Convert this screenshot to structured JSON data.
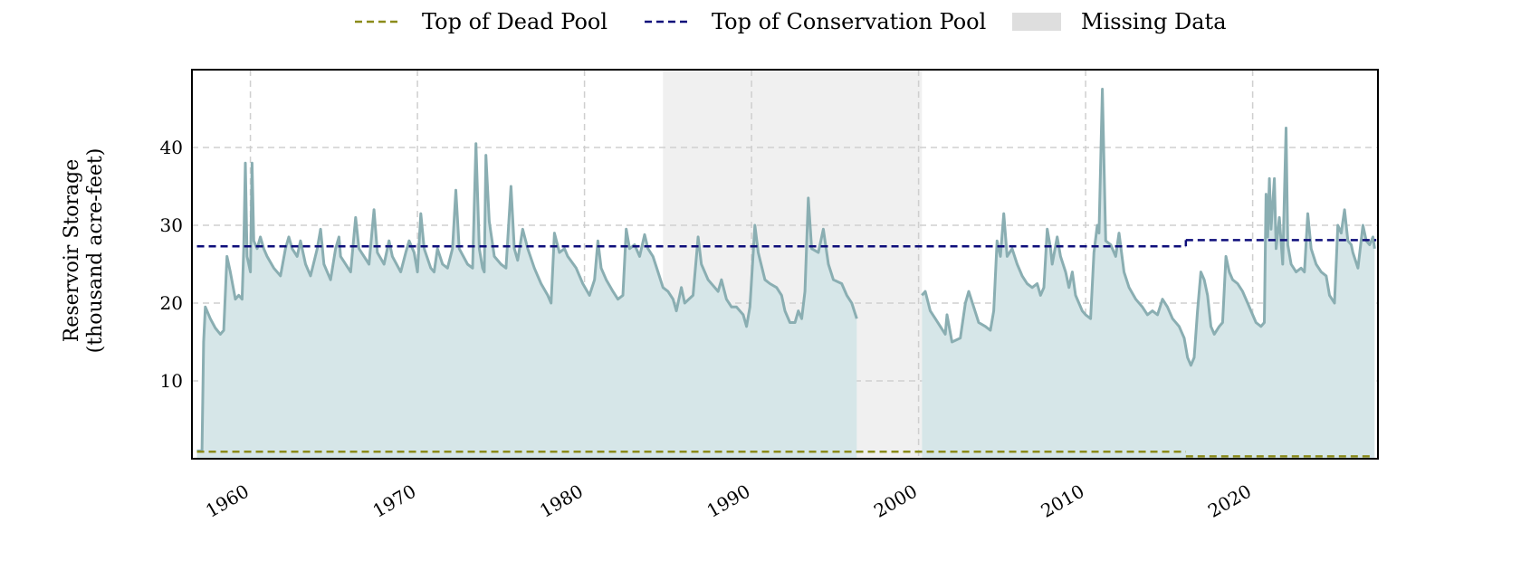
{
  "chart_data": {
    "type": "area",
    "title": "",
    "ylabel_line1": "Reservoir Storage",
    "ylabel_line2": "(thousand acre-feet)",
    "xlabel": "",
    "xlim": [
      1956.5,
      2027.5
    ],
    "ylim": [
      0,
      50
    ],
    "x_ticks": [
      1960,
      1970,
      1980,
      1990,
      2000,
      2010,
      2020
    ],
    "x_tick_labels": [
      "1960",
      "1970",
      "1980",
      "1990",
      "2000",
      "2010",
      "2020"
    ],
    "y_ticks": [
      10,
      20,
      30,
      40
    ],
    "y_tick_labels": [
      "10",
      "20",
      "30",
      "40"
    ],
    "grid": true,
    "legend_position": "top-center",
    "legend": {
      "dead_pool": "Top of Dead Pool",
      "conservation_pool": "Top of Conservation Pool",
      "missing": "Missing Data"
    },
    "colors": {
      "storage_line": "#8aaeb2",
      "storage_fill": "#d6e6e8",
      "dead_pool": "#8b8b1a",
      "conservation_pool": "#0d0d7a",
      "missing": "#f0f0f0",
      "missing_legend": "#dedede",
      "grid": "#cfcfcf"
    },
    "missing_ranges": [
      [
        1984.7,
        2000.2
      ]
    ],
    "dead_pool": [
      {
        "x": [
          1956.8,
          2016.0
        ],
        "y": 0.9
      },
      {
        "x": [
          2016.0,
          2027.1
        ],
        "y": 0.3
      }
    ],
    "conservation_pool": [
      {
        "x": [
          1956.8,
          2016.0
        ],
        "y": 27.3
      },
      {
        "x": [
          2016.0,
          2027.4
        ],
        "y": 28.1
      }
    ],
    "storage_segments": [
      [
        [
          1956.8,
          1.0
        ],
        [
          1957.1,
          1.0
        ],
        [
          1957.2,
          15
        ],
        [
          1957.3,
          19.5
        ],
        [
          1957.6,
          18
        ],
        [
          1957.9,
          16.8
        ],
        [
          1958.2,
          16.0
        ],
        [
          1958.4,
          16.5
        ],
        [
          1958.6,
          26
        ],
        [
          1958.8,
          24
        ],
        [
          1959.1,
          20.5
        ],
        [
          1959.3,
          21
        ],
        [
          1959.5,
          20.5
        ],
        [
          1959.6,
          27
        ],
        [
          1959.7,
          38
        ],
        [
          1959.8,
          26
        ],
        [
          1960.0,
          24
        ],
        [
          1960.1,
          38
        ],
        [
          1960.2,
          28
        ],
        [
          1960.4,
          27
        ],
        [
          1960.6,
          28.5
        ],
        [
          1960.8,
          27
        ],
        [
          1961.0,
          26
        ],
        [
          1961.4,
          24.5
        ],
        [
          1961.8,
          23.5
        ],
        [
          1962.1,
          27
        ],
        [
          1962.3,
          28.5
        ],
        [
          1962.5,
          27
        ],
        [
          1962.8,
          26
        ],
        [
          1963.0,
          28
        ],
        [
          1963.3,
          25
        ],
        [
          1963.6,
          23.5
        ],
        [
          1964.0,
          27
        ],
        [
          1964.2,
          29.5
        ],
        [
          1964.4,
          25
        ],
        [
          1964.8,
          23
        ],
        [
          1965.1,
          27
        ],
        [
          1965.3,
          28.5
        ],
        [
          1965.4,
          26
        ],
        [
          1966.0,
          24
        ],
        [
          1966.3,
          31
        ],
        [
          1966.5,
          27
        ],
        [
          1967.1,
          25
        ],
        [
          1967.4,
          32
        ],
        [
          1967.6,
          26.5
        ],
        [
          1968.0,
          25
        ],
        [
          1968.3,
          28
        ],
        [
          1968.5,
          26
        ],
        [
          1969.0,
          24
        ],
        [
          1969.3,
          26.5
        ],
        [
          1969.5,
          28
        ],
        [
          1969.8,
          26.5
        ],
        [
          1970.0,
          24
        ],
        [
          1970.2,
          31.5
        ],
        [
          1970.4,
          27
        ],
        [
          1970.8,
          24.5
        ],
        [
          1971.0,
          24
        ],
        [
          1971.2,
          27
        ],
        [
          1971.5,
          25
        ],
        [
          1971.8,
          24.5
        ],
        [
          1972.1,
          27
        ],
        [
          1972.3,
          34.5
        ],
        [
          1972.5,
          27
        ],
        [
          1973.0,
          25
        ],
        [
          1973.3,
          24.5
        ],
        [
          1973.5,
          40.5
        ],
        [
          1973.7,
          27
        ],
        [
          1973.9,
          24.5
        ],
        [
          1974.0,
          24
        ],
        [
          1974.1,
          39
        ],
        [
          1974.3,
          30.5
        ],
        [
          1974.6,
          26
        ],
        [
          1975.0,
          25
        ],
        [
          1975.3,
          24.5
        ],
        [
          1975.6,
          35
        ],
        [
          1975.8,
          27
        ],
        [
          1976.0,
          25.5
        ],
        [
          1976.3,
          29.5
        ],
        [
          1976.6,
          27
        ],
        [
          1977.0,
          24.5
        ],
        [
          1977.4,
          22.5
        ],
        [
          1977.8,
          21
        ],
        [
          1978.0,
          20
        ],
        [
          1978.2,
          29
        ],
        [
          1978.5,
          26.5
        ],
        [
          1978.8,
          27
        ],
        [
          1979.0,
          26
        ],
        [
          1979.5,
          24.5
        ],
        [
          1979.9,
          22.5
        ],
        [
          1980.3,
          21
        ],
        [
          1980.6,
          23
        ],
        [
          1980.8,
          28
        ],
        [
          1981.0,
          24.5
        ],
        [
          1981.3,
          23
        ],
        [
          1981.7,
          21.5
        ],
        [
          1982.0,
          20.5
        ],
        [
          1982.3,
          21
        ],
        [
          1982.5,
          29.5
        ],
        [
          1982.7,
          27
        ],
        [
          1983.0,
          27.5
        ],
        [
          1983.3,
          26
        ],
        [
          1983.6,
          28.8
        ],
        [
          1983.8,
          27
        ],
        [
          1984.1,
          26
        ],
        [
          1984.4,
          24
        ],
        [
          1984.7,
          22
        ],
        [
          1985.0,
          21.5
        ],
        [
          1985.3,
          20.5
        ],
        [
          1985.5,
          19
        ],
        [
          1985.8,
          22
        ],
        [
          1986.0,
          20
        ],
        [
          1986.5,
          21
        ],
        [
          1986.8,
          28.5
        ],
        [
          1987.0,
          25
        ],
        [
          1987.4,
          23
        ],
        [
          1987.8,
          22
        ],
        [
          1988.0,
          21.5
        ],
        [
          1988.2,
          23
        ],
        [
          1988.5,
          20.5
        ],
        [
          1988.8,
          19.5
        ],
        [
          1989.1,
          19.5
        ],
        [
          1989.5,
          18.5
        ],
        [
          1989.7,
          17
        ],
        [
          1989.9,
          19.5
        ],
        [
          1990.2,
          30
        ],
        [
          1990.4,
          26.5
        ],
        [
          1990.8,
          23
        ],
        [
          1991.1,
          22.5
        ],
        [
          1991.5,
          22
        ],
        [
          1991.8,
          21
        ],
        [
          1992.0,
          19
        ],
        [
          1992.3,
          17.5
        ],
        [
          1992.6,
          17.5
        ],
        [
          1992.8,
          19
        ],
        [
          1993.0,
          18
        ],
        [
          1993.2,
          21.5
        ],
        [
          1993.4,
          33.5
        ],
        [
          1993.6,
          27
        ],
        [
          1994.0,
          26.5
        ],
        [
          1994.3,
          29.5
        ],
        [
          1994.6,
          25
        ],
        [
          1994.9,
          23
        ],
        [
          1995.4,
          22.5
        ],
        [
          1995.7,
          21
        ],
        [
          1996.0,
          20
        ],
        [
          1996.3,
          18
        ]
      ],
      [
        [
          2000.2,
          21
        ],
        [
          2000.4,
          21.5
        ],
        [
          2000.7,
          19
        ],
        [
          2001.0,
          18
        ],
        [
          2001.3,
          17
        ],
        [
          2001.6,
          16
        ],
        [
          2001.7,
          18.5
        ],
        [
          2002.0,
          15
        ],
        [
          2002.5,
          15.5
        ],
        [
          2002.8,
          20
        ],
        [
          2003.0,
          21.5
        ],
        [
          2003.3,
          19.5
        ],
        [
          2003.6,
          17.5
        ],
        [
          2004.0,
          17
        ],
        [
          2004.3,
          16.5
        ],
        [
          2004.5,
          19
        ],
        [
          2004.7,
          28
        ],
        [
          2004.9,
          26
        ],
        [
          2005.1,
          31.5
        ],
        [
          2005.3,
          26
        ],
        [
          2005.6,
          27
        ],
        [
          2005.9,
          25
        ],
        [
          2006.2,
          23.5
        ],
        [
          2006.5,
          22.5
        ],
        [
          2006.8,
          22
        ],
        [
          2007.1,
          22.5
        ],
        [
          2007.3,
          21
        ],
        [
          2007.5,
          22
        ],
        [
          2007.7,
          29.5
        ],
        [
          2007.9,
          27
        ],
        [
          2008.0,
          25
        ],
        [
          2008.3,
          28.5
        ],
        [
          2008.5,
          26
        ],
        [
          2008.8,
          24
        ],
        [
          2009.0,
          22
        ],
        [
          2009.2,
          24
        ],
        [
          2009.4,
          21
        ],
        [
          2009.8,
          19
        ],
        [
          2010.0,
          18.5
        ],
        [
          2010.3,
          18
        ],
        [
          2010.5,
          26.5
        ],
        [
          2010.7,
          30
        ],
        [
          2010.8,
          29
        ],
        [
          2011.0,
          47.5
        ],
        [
          2011.2,
          28
        ],
        [
          2011.5,
          27.5
        ],
        [
          2011.8,
          26
        ],
        [
          2012.0,
          29
        ],
        [
          2012.3,
          24
        ],
        [
          2012.6,
          22
        ],
        [
          2013.0,
          20.5
        ],
        [
          2013.4,
          19.5
        ],
        [
          2013.7,
          18.5
        ],
        [
          2014.0,
          19
        ],
        [
          2014.3,
          18.5
        ],
        [
          2014.6,
          20.5
        ],
        [
          2014.9,
          19.5
        ],
        [
          2015.2,
          18
        ],
        [
          2015.6,
          17
        ],
        [
          2015.9,
          15.5
        ],
        [
          2016.1,
          13
        ],
        [
          2016.3,
          12
        ],
        [
          2016.5,
          13
        ],
        [
          2016.7,
          19
        ],
        [
          2016.9,
          24
        ],
        [
          2017.1,
          23
        ],
        [
          2017.3,
          21
        ],
        [
          2017.5,
          17
        ],
        [
          2017.7,
          16
        ],
        [
          2018.0,
          17
        ],
        [
          2018.2,
          17.5
        ],
        [
          2018.4,
          26
        ],
        [
          2018.6,
          24
        ],
        [
          2018.8,
          23
        ],
        [
          2019.1,
          22.5
        ],
        [
          2019.4,
          21.5
        ],
        [
          2019.7,
          20
        ],
        [
          2020.0,
          18.5
        ],
        [
          2020.2,
          17.5
        ],
        [
          2020.5,
          17
        ],
        [
          2020.7,
          17.5
        ],
        [
          2020.8,
          34
        ],
        [
          2020.9,
          28.5
        ],
        [
          2021.0,
          36
        ],
        [
          2021.1,
          29.5
        ],
        [
          2021.3,
          36
        ],
        [
          2021.4,
          27
        ],
        [
          2021.6,
          31
        ],
        [
          2021.8,
          25
        ],
        [
          2022.0,
          42.5
        ],
        [
          2022.1,
          27.5
        ],
        [
          2022.3,
          25
        ],
        [
          2022.6,
          24
        ],
        [
          2022.9,
          24.5
        ],
        [
          2023.1,
          24
        ],
        [
          2023.3,
          31.5
        ],
        [
          2023.5,
          27
        ],
        [
          2023.8,
          25
        ],
        [
          2024.1,
          24
        ],
        [
          2024.4,
          23.5
        ],
        [
          2024.6,
          21
        ],
        [
          2024.9,
          20
        ],
        [
          2025.1,
          30
        ],
        [
          2025.3,
          29
        ],
        [
          2025.5,
          32
        ],
        [
          2025.7,
          28
        ],
        [
          2025.9,
          27.5
        ],
        [
          2026.0,
          26.5
        ],
        [
          2026.3,
          24.5
        ],
        [
          2026.6,
          30
        ],
        [
          2026.8,
          28
        ],
        [
          2027.0,
          27.5
        ],
        [
          2027.2,
          28.5
        ],
        [
          2027.3,
          27
        ]
      ]
    ]
  }
}
